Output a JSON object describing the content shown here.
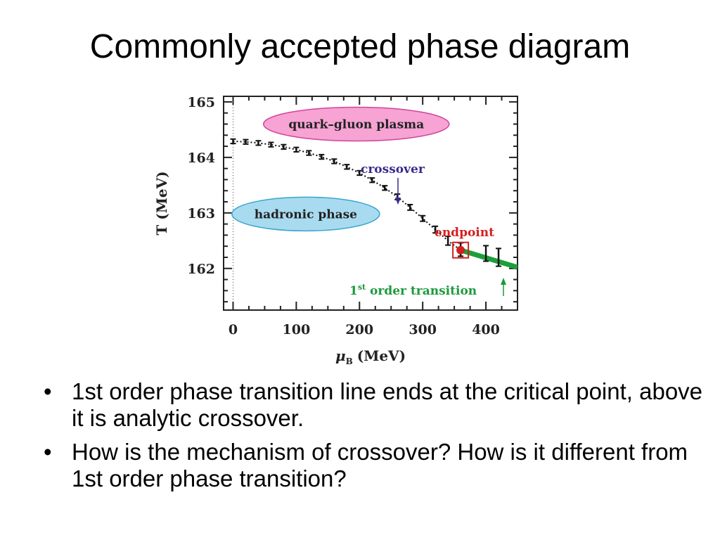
{
  "slide": {
    "title": "Commonly accepted phase diagram",
    "bullets": [
      "1st order phase transition line ends at the critical point, above it is analytic crossover.",
      "How is the mechanism of crossover? How is it different from 1st order phase transition?"
    ],
    "bullet_symbol": "•"
  },
  "chart_data": {
    "type": "scatter",
    "xlabel_symbol": "μ",
    "xlabel_subscript": "B",
    "xlabel_unit": "(MeV)",
    "ylabel": "T (MeV)",
    "xlim": [
      -15,
      450
    ],
    "ylim": [
      161.25,
      165.1
    ],
    "x_ticks": [
      0,
      100,
      200,
      300,
      400
    ],
    "y_ticks": [
      162,
      163,
      164,
      165
    ],
    "crossover_points": [
      {
        "x": 0,
        "y": 164.29,
        "err": 0.04
      },
      {
        "x": 20,
        "y": 164.28,
        "err": 0.04
      },
      {
        "x": 40,
        "y": 164.26,
        "err": 0.04
      },
      {
        "x": 60,
        "y": 164.23,
        "err": 0.04
      },
      {
        "x": 80,
        "y": 164.19,
        "err": 0.04
      },
      {
        "x": 100,
        "y": 164.14,
        "err": 0.04
      },
      {
        "x": 120,
        "y": 164.08,
        "err": 0.04
      },
      {
        "x": 140,
        "y": 164.01,
        "err": 0.04
      },
      {
        "x": 160,
        "y": 163.93,
        "err": 0.04
      },
      {
        "x": 180,
        "y": 163.83,
        "err": 0.04
      },
      {
        "x": 200,
        "y": 163.72,
        "err": 0.04
      },
      {
        "x": 220,
        "y": 163.59,
        "err": 0.04
      },
      {
        "x": 240,
        "y": 163.45,
        "err": 0.04
      },
      {
        "x": 260,
        "y": 163.29,
        "err": 0.05
      },
      {
        "x": 280,
        "y": 163.1,
        "err": 0.05
      },
      {
        "x": 300,
        "y": 162.9,
        "err": 0.05
      },
      {
        "x": 320,
        "y": 162.7,
        "err": 0.06
      },
      {
        "x": 340,
        "y": 162.5,
        "err": 0.08
      }
    ],
    "endpoint_errorbars": [
      {
        "x": 360,
        "y": 162.34,
        "err": 0.12
      },
      {
        "x": 400,
        "y": 162.27,
        "err": 0.14
      },
      {
        "x": 420,
        "y": 162.2,
        "err": 0.16
      }
    ],
    "endpoint": {
      "x": 360,
      "y": 162.33,
      "label": "endpoint"
    },
    "first_order_line": [
      [
        360,
        162.33
      ],
      [
        450,
        162.02
      ]
    ],
    "regions": [
      {
        "label": "quark–gluon plasma",
        "x": 195,
        "y": 164.6,
        "color": "#d0449a"
      },
      {
        "label": "hadronic phase",
        "x": 115,
        "y": 162.98,
        "color": "#3aa5cf"
      }
    ],
    "annotations": {
      "crossover": {
        "label": "crossover",
        "color": "#3a2a8c"
      },
      "first_order": {
        "label_prefix": "1",
        "label_sup": "st",
        "label_suffix": " order transition",
        "color": "#1a9a3a"
      }
    },
    "colors": {
      "crossover_points": "#111111",
      "endpoint": "#d42020",
      "first_order_line": "#1aa03a"
    }
  }
}
